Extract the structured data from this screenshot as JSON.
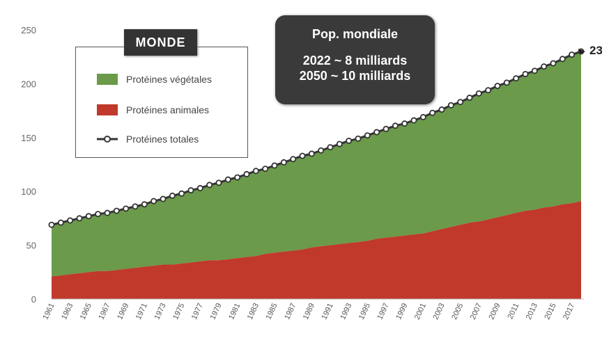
{
  "chart_data": {
    "type": "area",
    "stacked": true,
    "x": [
      1961,
      1962,
      1963,
      1964,
      1965,
      1966,
      1967,
      1968,
      1969,
      1970,
      1971,
      1972,
      1973,
      1974,
      1975,
      1976,
      1977,
      1978,
      1979,
      1980,
      1981,
      1982,
      1983,
      1984,
      1985,
      1986,
      1987,
      1988,
      1989,
      1990,
      1991,
      1992,
      1993,
      1994,
      1995,
      1996,
      1997,
      1998,
      1999,
      2000,
      2001,
      2002,
      2003,
      2004,
      2005,
      2006,
      2007,
      2008,
      2009,
      2010,
      2011,
      2012,
      2013,
      2014,
      2015,
      2016,
      2017,
      2018
    ],
    "x_tick_labels": [
      "1961",
      "1963",
      "1965",
      "1967",
      "1969",
      "1971",
      "1973",
      "1975",
      "1977",
      "1979",
      "1981",
      "1983",
      "1985",
      "1987",
      "1989",
      "1991",
      "1993",
      "1995",
      "1997",
      "1999",
      "2001",
      "2003",
      "2005",
      "2007",
      "2009",
      "2011",
      "2013",
      "2015",
      "2017"
    ],
    "y_ticks": [
      "0",
      "50",
      "100",
      "150",
      "200",
      "250"
    ],
    "ylim": [
      0,
      250
    ],
    "grid": false,
    "legend_placement": "top-left",
    "series": [
      {
        "name": "Protéines animales",
        "color": "#c0392b",
        "values": [
          21,
          22,
          23,
          24,
          25,
          26,
          26,
          27,
          28,
          29,
          30,
          31,
          32,
          32,
          33,
          34,
          35,
          36,
          36,
          37,
          38,
          39,
          40,
          42,
          43,
          44,
          45,
          46,
          48,
          49,
          50,
          51,
          52,
          53,
          54,
          56,
          57,
          58,
          59,
          60,
          61,
          63,
          65,
          67,
          69,
          71,
          72,
          74,
          76,
          78,
          80,
          82,
          83,
          85,
          86,
          88,
          89,
          91
        ]
      },
      {
        "name": "Protéines végétales",
        "color": "#6a9a4a",
        "values": "total minus animal"
      },
      {
        "name": "Protéines totales",
        "color": "#333333",
        "values": [
          69,
          71,
          73,
          75,
          77,
          79,
          80,
          82,
          84,
          86,
          88,
          91,
          93,
          96,
          98,
          101,
          103,
          106,
          108,
          111,
          113,
          116,
          119,
          121,
          124,
          127,
          130,
          133,
          135,
          138,
          141,
          144,
          147,
          149,
          152,
          155,
          158,
          161,
          163,
          166,
          169,
          173,
          176,
          180,
          183,
          187,
          191,
          194,
          198,
          201,
          205,
          209,
          212,
          216,
          219,
          223,
          227,
          230
        ]
      }
    ],
    "end_label": "23"
  },
  "legend": {
    "title": "MONDE",
    "items": [
      "Protéines végétales",
      "Protéines animales",
      "Protéines totales"
    ]
  },
  "info": {
    "title": "Pop. mondiale",
    "line1": "2022 ~ 8 milliards",
    "line2": "2050 ~ 10 milliards"
  }
}
